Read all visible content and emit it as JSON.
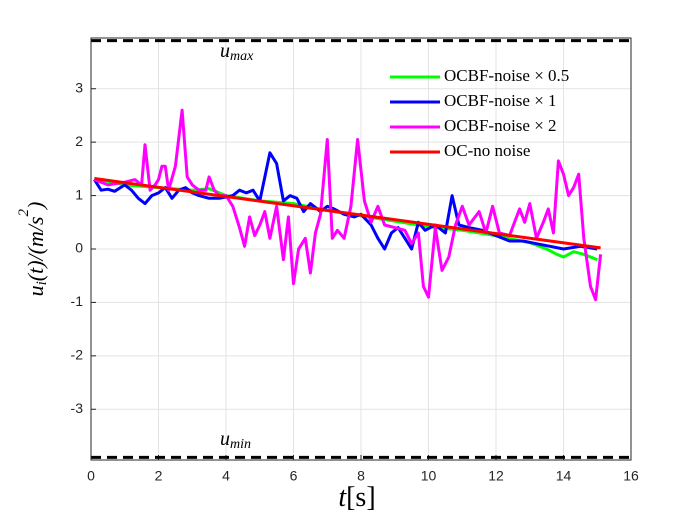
{
  "chart_data": {
    "type": "line",
    "xlabel": {
      "main": "t",
      "rest": "[s]"
    },
    "ylabel": [
      {
        "text": "u"
      },
      {
        "sub": "i"
      },
      {
        "text": "(t)/(m/s"
      },
      {
        "sup": "2"
      },
      {
        "text": ")"
      }
    ],
    "xlim": [
      0,
      16
    ],
    "xticks": [
      0,
      2,
      4,
      6,
      8,
      10,
      12,
      14,
      16
    ],
    "ylim": [
      -3.95,
      3.95
    ],
    "yticks": [
      -3,
      -2,
      -1,
      0,
      1,
      2,
      3
    ],
    "grid": true,
    "legend": "northeast",
    "hlines": [
      {
        "value": 3.9,
        "label": "u",
        "sub": "max"
      },
      {
        "value": -3.9,
        "label": "u",
        "sub": "min"
      }
    ],
    "series": [
      {
        "name": "OCBF-noise × 0.5",
        "color": "#00ff00",
        "x": [
          0.1,
          1,
          2,
          3,
          3.5,
          4,
          5,
          6,
          7,
          8,
          9,
          10,
          11,
          12,
          12.5,
          13,
          13.5,
          13.8,
          14,
          14.3,
          14.6,
          15
        ],
        "values": [
          1.32,
          1.2,
          1.15,
          1.1,
          1.13,
          1.0,
          0.9,
          0.85,
          0.72,
          0.62,
          0.52,
          0.42,
          0.35,
          0.25,
          0.18,
          0.12,
          0.0,
          -0.1,
          -0.15,
          -0.05,
          -0.1,
          -0.2
        ]
      },
      {
        "name": "OCBF-noise × 1",
        "color": "#0000ff",
        "x": [
          0.1,
          0.3,
          0.5,
          0.7,
          1,
          1.2,
          1.4,
          1.6,
          1.8,
          2.0,
          2.2,
          2.4,
          2.6,
          2.8,
          3.0,
          3.2,
          3.5,
          3.8,
          4.2,
          4.4,
          4.6,
          4.8,
          5.0,
          5.3,
          5.5,
          5.7,
          5.9,
          6.1,
          6.3,
          6.5,
          6.8,
          7.0,
          7.2,
          7.5,
          7.8,
          8.0,
          8.3,
          8.5,
          8.7,
          8.9,
          9.1,
          9.3,
          9.5,
          9.7,
          9.9,
          10.2,
          10.5,
          10.7,
          10.9,
          11.2,
          11.6,
          12,
          12.4,
          12.8,
          13.2,
          13.6,
          14,
          14.5,
          15
        ],
        "values": [
          1.3,
          1.1,
          1.12,
          1.08,
          1.2,
          1.1,
          0.95,
          0.85,
          1.0,
          1.05,
          1.15,
          0.95,
          1.1,
          1.15,
          1.05,
          1.0,
          0.95,
          0.95,
          1.0,
          1.1,
          1.05,
          1.1,
          0.9,
          1.8,
          1.6,
          0.9,
          1.0,
          0.95,
          0.7,
          0.85,
          0.7,
          0.8,
          0.75,
          0.65,
          0.6,
          0.65,
          0.45,
          0.2,
          0.0,
          0.3,
          0.4,
          0.2,
          0.0,
          0.5,
          0.35,
          0.45,
          0.3,
          1.0,
          0.45,
          0.4,
          0.35,
          0.25,
          0.15,
          0.15,
          0.1,
          0.05,
          0.0,
          0.05,
          0.0
        ]
      },
      {
        "name": "OCBF-noise × 2",
        "color": "#ff00ff",
        "x": [
          0.1,
          0.5,
          1,
          1.3,
          1.5,
          1.6,
          1.75,
          1.9,
          2.0,
          2.1,
          2.2,
          2.3,
          2.5,
          2.7,
          2.85,
          3.0,
          3.2,
          3.4,
          3.5,
          3.65,
          3.8,
          4.0,
          4.2,
          4.4,
          4.55,
          4.7,
          4.85,
          5.0,
          5.15,
          5.3,
          5.5,
          5.7,
          5.85,
          6.0,
          6.15,
          6.35,
          6.5,
          6.65,
          6.8,
          7.0,
          7.15,
          7.3,
          7.5,
          7.7,
          7.9,
          8.1,
          8.3,
          8.5,
          8.7,
          9.0,
          9.3,
          9.5,
          9.7,
          9.85,
          10.0,
          10.2,
          10.4,
          10.6,
          10.8,
          11.0,
          11.2,
          11.5,
          11.7,
          11.9,
          12.1,
          12.4,
          12.7,
          12.85,
          13.0,
          13.2,
          13.4,
          13.55,
          13.7,
          13.85,
          14.0,
          14.15,
          14.3,
          14.45,
          14.6,
          14.8,
          14.95,
          15.1
        ],
        "values": [
          1.3,
          1.2,
          1.25,
          1.3,
          1.2,
          1.95,
          1.1,
          1.2,
          1.3,
          1.55,
          1.55,
          1.1,
          1.55,
          2.6,
          1.35,
          1.2,
          1.1,
          1.1,
          1.35,
          1.1,
          1.0,
          1.0,
          0.8,
          0.4,
          0.05,
          0.6,
          0.25,
          0.45,
          0.7,
          0.2,
          0.8,
          -0.2,
          0.6,
          -0.65,
          0.0,
          0.2,
          -0.45,
          0.3,
          0.65,
          2.05,
          0.2,
          0.35,
          0.2,
          0.8,
          2.05,
          0.9,
          0.5,
          0.8,
          0.45,
          0.4,
          0.35,
          0.1,
          0.3,
          -0.7,
          -0.9,
          0.4,
          -0.4,
          -0.15,
          0.45,
          0.8,
          0.45,
          0.7,
          0.3,
          0.8,
          0.3,
          0.25,
          0.75,
          0.5,
          0.85,
          0.2,
          0.5,
          0.75,
          0.3,
          1.65,
          1.4,
          1.0,
          1.15,
          1.4,
          0.2,
          -0.7,
          -0.95,
          -0.1
        ]
      },
      {
        "name": "OC-no noise",
        "color": "#ff0000",
        "x": [
          0.1,
          15.1
        ],
        "values": [
          1.32,
          0.02
        ]
      }
    ]
  }
}
